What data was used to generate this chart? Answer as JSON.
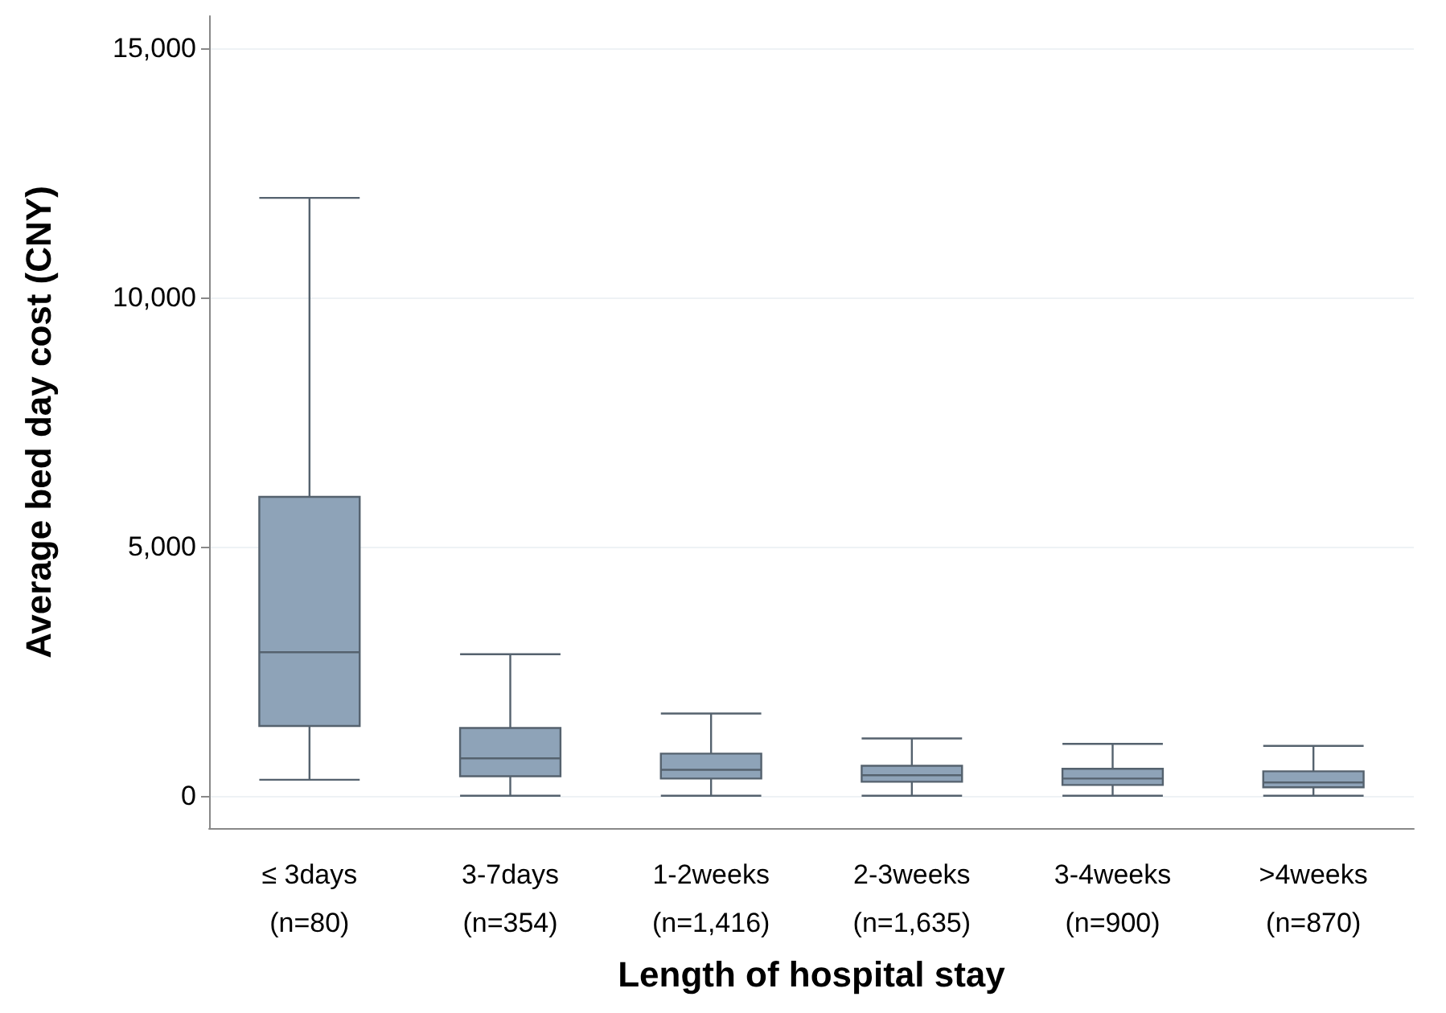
{
  "chart_data": {
    "type": "box",
    "xlabel": "Length of hospital stay",
    "ylabel": "Average bed day cost (CNY)",
    "categories": [
      "≤ 3days\n(n=80)",
      "3-7days\n(n=354)",
      "1-2weeks\n(n=1,416)",
      "2-3weeks\n(n=1,635)",
      "3-4weeks\n(n=900)",
      ">4weeks\n(n=870)"
    ],
    "series": [
      {
        "color": "#8ea3b8",
        "boxes": [
          {
            "low": 320,
            "q1": 1400,
            "median": 2880,
            "q3": 6000,
            "high": 12000
          },
          {
            "low": 0,
            "q1": 390,
            "median": 750,
            "q3": 1360,
            "high": 2840
          },
          {
            "low": 0,
            "q1": 345,
            "median": 520,
            "q3": 845,
            "high": 1650
          },
          {
            "low": 0,
            "q1": 280,
            "median": 410,
            "q3": 600,
            "high": 1150
          },
          {
            "low": 0,
            "q1": 215,
            "median": 345,
            "q3": 540,
            "high": 1040
          },
          {
            "low": 0,
            "q1": 170,
            "median": 265,
            "q3": 490,
            "high": 1000
          }
        ]
      }
    ],
    "ylim": [
      -650,
      15650
    ],
    "yticks": [
      {
        "value": 0,
        "label": "0"
      },
      {
        "value": 5000,
        "label": "5,000"
      },
      {
        "value": 10000,
        "label": "10,000"
      },
      {
        "value": 15000,
        "label": "15,000"
      }
    ],
    "grid": "y"
  }
}
